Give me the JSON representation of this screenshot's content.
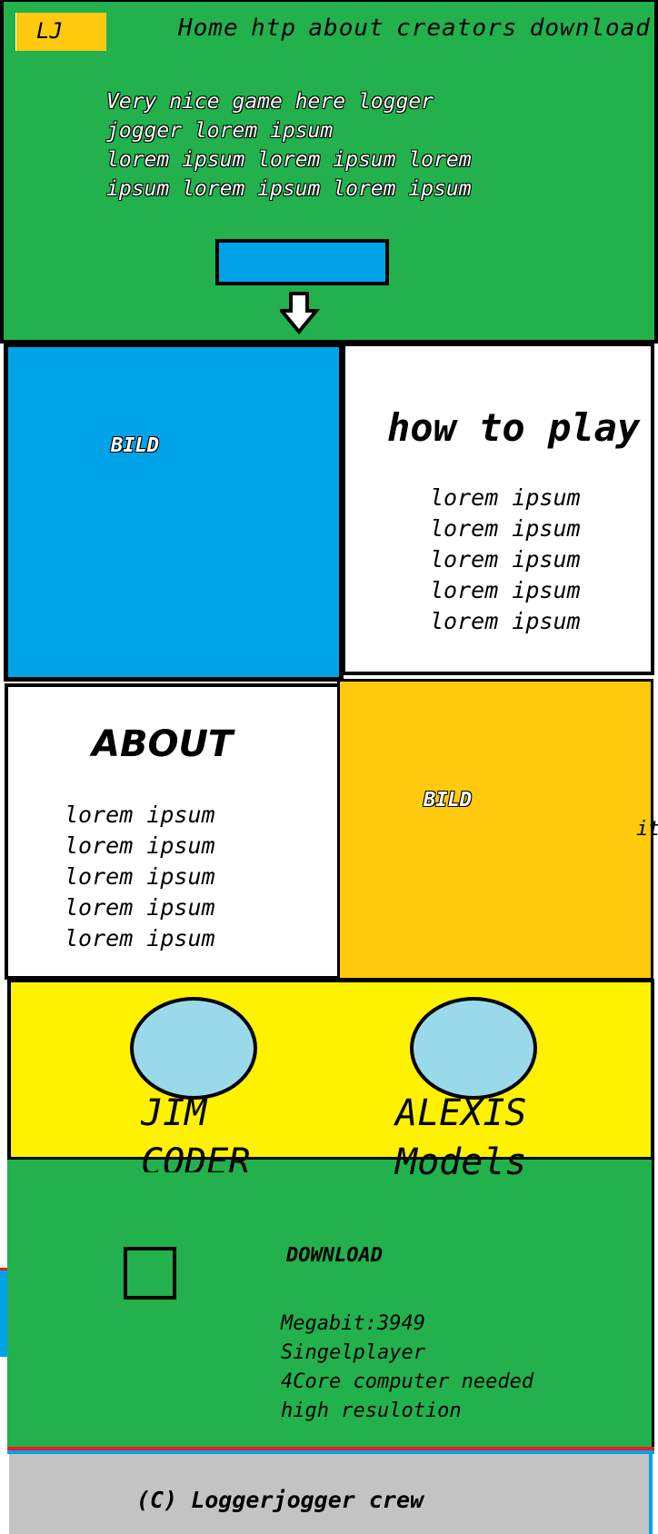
{
  "header": {
    "logo_text": "LJ",
    "nav": [
      "Home",
      "htp",
      "about",
      "creators",
      "download"
    ],
    "intro_lines": [
      "Very nice game here logger",
      "jogger lorem ipsum",
      "lorem ipsum lorem ipsum lorem",
      "ipsum lorem ipsum lorem ipsum"
    ]
  },
  "htp_section": {
    "image_label": "BILD",
    "title": "how to play",
    "lines": [
      "lorem ipsum",
      "lorem ipsum",
      "lorem ipsum",
      "lorem ipsum",
      "lorem ipsum"
    ]
  },
  "about_section": {
    "title": "ABOUT",
    "lines": [
      "lorem ipsum",
      "lorem ipsum",
      "lorem ipsum",
      "lorem ipsum",
      "lorem ipsum"
    ],
    "image_label": "BILD",
    "edge_text": "it"
  },
  "creators": [
    {
      "name": "JIM",
      "role": "CODER"
    },
    {
      "name": "ALEXIS",
      "role": "Models"
    }
  ],
  "download_section": {
    "title": "DOWNLOAD",
    "specs": [
      "Megabit:3949",
      "Singelplayer",
      "4Core computer needed",
      "high resulotion"
    ]
  },
  "footer": {
    "text": "(C) Loggerjogger crew"
  },
  "colors": {
    "green": "#22b14c",
    "blue": "#00a2e8",
    "orange": "#ffc90e",
    "yellow": "#fff200",
    "light_blue": "#99d9ea",
    "gray": "#c3c3c3",
    "red": "#ed1c24"
  }
}
